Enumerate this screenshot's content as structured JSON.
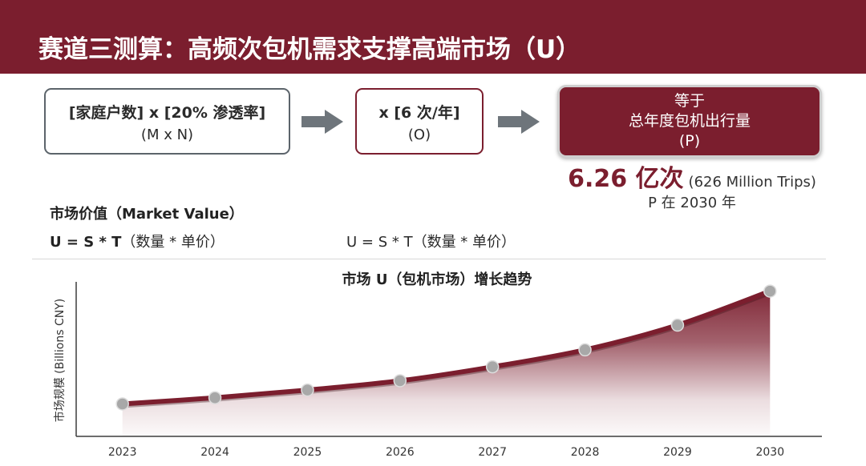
{
  "header": {
    "title": "赛道三测算：高频次包机需求支撑高端市场（U）"
  },
  "formula_flow": {
    "box1": {
      "line1": "[家庭户数] x [20% 渗透率]",
      "line2": "(M x N)"
    },
    "arrow1_icon": "arrow-right-icon",
    "box2": {
      "line1": "x [6 次/年]",
      "line2": "(O)"
    },
    "arrow2_icon": "arrow-right-icon",
    "box3": {
      "line1": "等于",
      "line2": "总年度包机出行量",
      "line3": "(P)"
    },
    "result": {
      "value": "6.26 亿次",
      "value_english": "(626 Million Trips)",
      "note": "P 在 2030 年"
    }
  },
  "market_value": {
    "heading": "市场价值（Market Value）",
    "formula_bold": "U = S * T",
    "formula_rest": "（数量 * 单价）",
    "formula_repeat": "U = S * T（数量 * 单价）"
  },
  "colors": {
    "brand": "#7b1e2e",
    "arrow": "#6e757b",
    "box_border": "#5c646b",
    "point": "#a8a8a8"
  },
  "chart_data": {
    "type": "area",
    "title": "市场 U（包机市场）增长趋势",
    "xlabel": "",
    "ylabel": "市场规模 (Billions CNY)",
    "categories": [
      "2023",
      "2024",
      "2025",
      "2026",
      "2027",
      "2028",
      "2029",
      "2030"
    ],
    "series": [
      {
        "values": [
          21,
          25,
          30,
          36,
          45,
          56,
          72,
          94
        ]
      }
    ],
    "ylim": [
      0,
      100
    ],
    "grid": false
  }
}
